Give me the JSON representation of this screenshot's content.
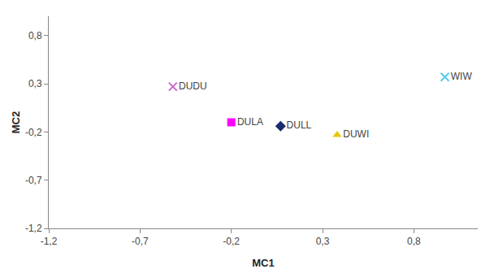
{
  "chart_data": {
    "type": "scatter",
    "xlabel": "MC1",
    "ylabel": "MC2",
    "series": [
      {
        "name": "DUDU",
        "x": [
          -0.52
        ],
        "values": [
          0.27
        ],
        "marker": "x",
        "color": "#cc66cc"
      },
      {
        "name": "DULA",
        "x": [
          -0.2
        ],
        "values": [
          -0.1
        ],
        "marker": "square",
        "color": "#ff00ff"
      },
      {
        "name": "DULL",
        "x": [
          0.07
        ],
        "values": [
          -0.14
        ],
        "marker": "diamond",
        "color": "#1a2b6e"
      },
      {
        "name": "DUWI",
        "x": [
          0.38
        ],
        "values": [
          -0.23
        ],
        "marker": "triangle-up",
        "color": "#e8c800"
      },
      {
        "name": "WIW",
        "x": [
          0.97
        ],
        "values": [
          0.37
        ],
        "marker": "x",
        "color": "#55ccee"
      }
    ],
    "xlim": [
      -1.2,
      1.15
    ],
    "ylim": [
      -1.2,
      1.0
    ],
    "xticks": [
      {
        "value": -1.2,
        "label": "-1,2"
      },
      {
        "value": -0.7,
        "label": "-0,7"
      },
      {
        "value": -0.2,
        "label": "-0,2"
      },
      {
        "value": 0.3,
        "label": "0,3"
      },
      {
        "value": 0.8,
        "label": "0,8"
      }
    ],
    "yticks": [
      {
        "value": -1.2,
        "label": "-1,2"
      },
      {
        "value": -0.7,
        "label": "-0,7"
      },
      {
        "value": -0.2,
        "label": "-0,2"
      },
      {
        "value": 0.3,
        "label": "0,3"
      },
      {
        "value": 0.8,
        "label": "0,8"
      }
    ],
    "grid": false
  }
}
